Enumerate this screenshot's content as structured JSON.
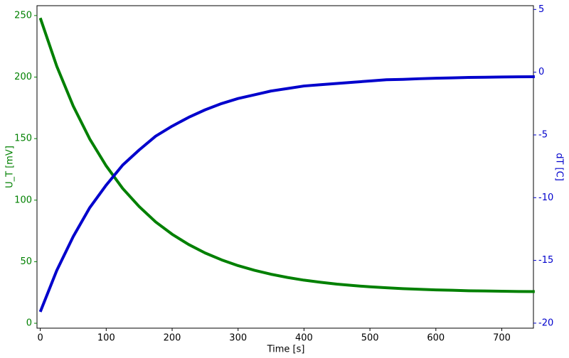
{
  "chart_data": {
    "type": "line",
    "xlabel": "Time [s]",
    "ylabel": "U_T [mV]",
    "y2label": "dT [C]",
    "x": [
      0,
      25,
      50,
      75,
      100,
      125,
      150,
      175,
      200,
      225,
      250,
      275,
      300,
      325,
      350,
      375,
      400,
      425,
      450,
      475,
      500,
      525,
      550,
      575,
      600,
      625,
      650,
      675,
      700,
      725,
      750
    ],
    "series": [
      {
        "name": "U_T",
        "color": "#008000",
        "axis": "y",
        "values": [
          248,
          208.8,
          176.4,
          149.7,
          127.8,
          109.5,
          94.8,
          82.3,
          72.3,
          64.0,
          57.1,
          51.5,
          46.8,
          43.0,
          39.8,
          37.2,
          35.0,
          33.3,
          31.8,
          30.6,
          29.6,
          28.8,
          28.1,
          27.6,
          27.1,
          26.8,
          26.4,
          26.2,
          26.0,
          25.8,
          25.7
        ]
      },
      {
        "name": "dT",
        "color": "#0000cc",
        "axis": "y2",
        "values": [
          -19.1,
          -15.8,
          -13.1,
          -10.8,
          -9.0,
          -7.4,
          -6.2,
          -5.1,
          -4.3,
          -3.6,
          -3.0,
          -2.5,
          -2.1,
          -1.8,
          -1.5,
          -1.3,
          -1.1,
          -1.0,
          -0.9,
          -0.8,
          -0.7,
          -0.6,
          -0.57,
          -0.52,
          -0.48,
          -0.45,
          -0.42,
          -0.4,
          -0.38,
          -0.37,
          -0.36
        ]
      }
    ],
    "xlim": [
      -5,
      748
    ],
    "xticks": [
      0,
      100,
      200,
      300,
      400,
      500,
      600,
      700
    ],
    "ylim": [
      -4,
      258
    ],
    "yticks": [
      0,
      50,
      100,
      150,
      200,
      250
    ],
    "y2lim": [
      -20.4,
      5.3
    ],
    "y2ticks": [
      5,
      0,
      -5,
      -10,
      -15,
      -20
    ],
    "grid": false
  }
}
